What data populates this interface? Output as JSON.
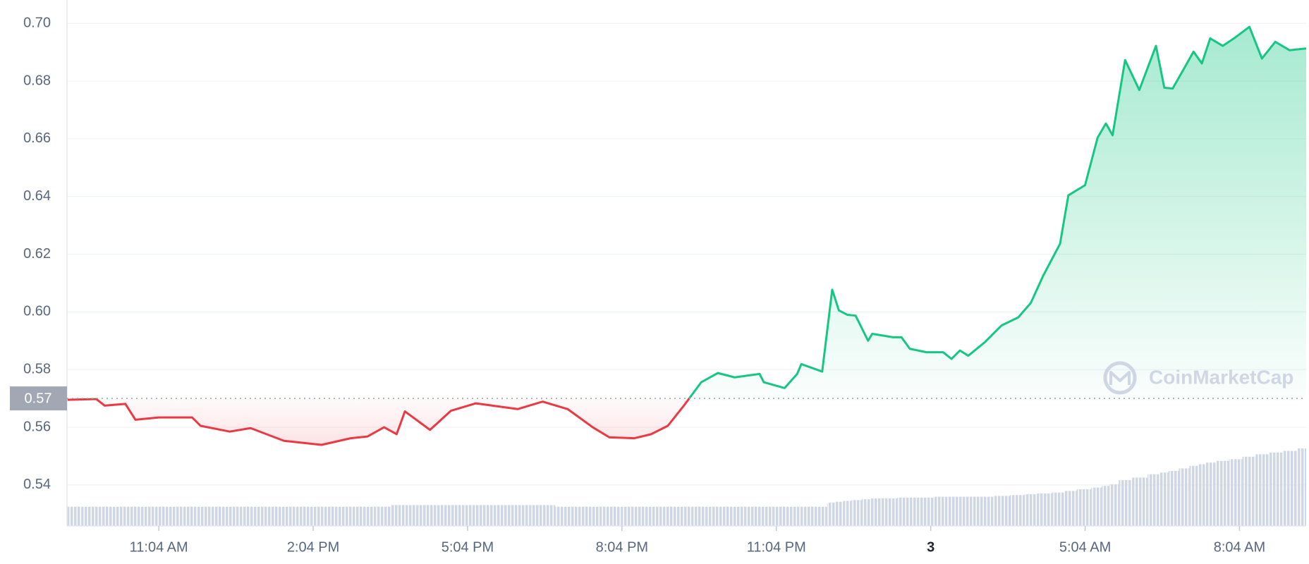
{
  "chart_data": {
    "type": "line",
    "x": [
      9.283,
      9.851,
      10.013,
      10.418,
      10.613,
      11.067,
      11.715,
      11.878,
      12.445,
      12.851,
      13.499,
      14.229,
      14.796,
      15.121,
      15.445,
      15.688,
      15.85,
      16.337,
      16.742,
      17.229,
      18.04,
      18.526,
      19.012,
      19.499,
      19.823,
      20.31,
      20.634,
      20.958,
      21.283,
      21.607,
      21.931,
      22.256,
      22.742,
      22.823,
      23.228,
      23.472,
      23.553,
      23.958,
      24.153,
      24.282,
      24.445,
      24.607,
      24.85,
      24.931,
      25.336,
      25.499,
      25.661,
      25.985,
      26.309,
      26.471,
      26.634,
      26.796,
      27.12,
      27.445,
      27.769,
      28.012,
      28.255,
      28.58,
      28.742,
      29.066,
      29.31,
      29.471,
      29.601,
      29.844,
      30.12,
      30.444,
      30.606,
      30.768,
      31.011,
      31.174,
      31.336,
      31.498,
      31.741,
      31.984,
      32.26,
      32.503,
      32.763,
      33.038,
      33.363
    ],
    "values": [
      0.5695,
      0.5698,
      0.5675,
      0.5681,
      0.5626,
      0.5634,
      0.5634,
      0.5605,
      0.5585,
      0.5597,
      0.5553,
      0.5539,
      0.5562,
      0.5568,
      0.56,
      0.5576,
      0.5655,
      0.5591,
      0.5657,
      0.5683,
      0.5663,
      0.5689,
      0.5663,
      0.56,
      0.5565,
      0.5562,
      0.5576,
      0.5605,
      0.5678,
      0.5756,
      0.5788,
      0.5773,
      0.5785,
      0.5756,
      0.5736,
      0.5785,
      0.5819,
      0.5793,
      0.6077,
      0.6005,
      0.599,
      0.5987,
      0.59,
      0.5924,
      0.5912,
      0.5912,
      0.5872,
      0.586,
      0.586,
      0.5837,
      0.5866,
      0.5848,
      0.5895,
      0.5953,
      0.5981,
      0.6031,
      0.6126,
      0.6236,
      0.6404,
      0.6439,
      0.6604,
      0.6653,
      0.6612,
      0.6873,
      0.6769,
      0.6922,
      0.6777,
      0.6774,
      0.685,
      0.6902,
      0.6861,
      0.6948,
      0.6922,
      0.6951,
      0.6988,
      0.6878,
      0.6936,
      0.6907,
      0.6913
    ],
    "colors": {
      "up": "#16c784",
      "down": "#ea3943"
    },
    "baseline": 0.57,
    "volume": {
      "color": "#cfd6e4",
      "values": [
        23,
        23,
        23,
        23,
        23,
        23,
        23,
        23,
        23,
        23,
        23,
        23,
        23,
        23,
        23,
        25,
        25,
        25,
        25,
        25,
        25,
        25,
        23,
        23,
        23,
        23,
        23,
        23,
        23,
        23,
        23,
        23,
        23,
        23,
        23,
        23,
        23,
        23,
        28,
        29,
        30,
        31,
        32,
        33,
        33,
        34,
        34,
        34,
        35,
        35,
        35,
        35,
        35,
        36,
        37,
        38,
        39,
        40,
        42,
        44,
        46,
        48,
        50,
        55,
        58,
        62,
        64,
        66,
        69,
        72,
        74,
        76,
        78,
        80,
        83,
        86,
        88,
        90,
        93
      ]
    },
    "xlim": [
      9.283,
      33.363
    ],
    "ylim": [
      0.5258,
      0.7081
    ],
    "yticks": [
      0.54,
      0.56,
      0.58,
      0.6,
      0.62,
      0.64,
      0.66,
      0.68,
      0.7
    ],
    "ytick_decimals": 2,
    "xticks": [
      {
        "value": 11.067,
        "label": "11:04 AM"
      },
      {
        "value": 14.067,
        "label": "2:04 PM"
      },
      {
        "value": 17.067,
        "label": "5:04 PM"
      },
      {
        "value": 20.067,
        "label": "8:04 PM"
      },
      {
        "value": 23.067,
        "label": "11:04 PM"
      },
      {
        "value": 26.067,
        "label": "3"
      },
      {
        "value": 29.067,
        "label": "5:04 AM"
      },
      {
        "value": 32.067,
        "label": "8:04 AM"
      }
    ],
    "grid": true,
    "watermark": "CoinMarketCap"
  }
}
